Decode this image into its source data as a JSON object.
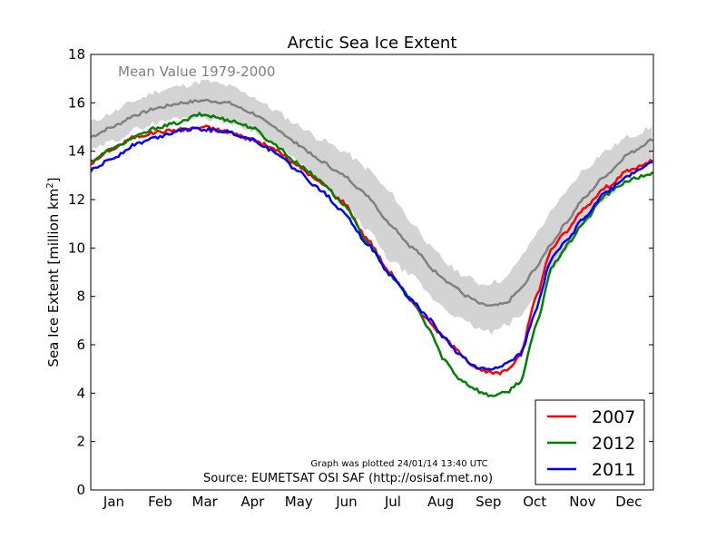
{
  "chart_data": {
    "type": "line",
    "title": "Arctic Sea Ice Extent",
    "ylabel": "Sea Ice Extent [million km",
    "ylabel_sup": "2",
    "ylabel_end": "]",
    "xlim": [
      1,
      366
    ],
    "ylim": [
      0,
      18
    ],
    "yticks": [
      0,
      2,
      4,
      6,
      8,
      10,
      12,
      14,
      16,
      18
    ],
    "months": [
      {
        "label": "Jan",
        "day": 16
      },
      {
        "label": "Feb",
        "day": 46
      },
      {
        "label": "Mar",
        "day": 75
      },
      {
        "label": "Apr",
        "day": 106
      },
      {
        "label": "May",
        "day": 136
      },
      {
        "label": "Jun",
        "day": 167
      },
      {
        "label": "Jul",
        "day": 197
      },
      {
        "label": "Aug",
        "day": 228
      },
      {
        "label": "Sep",
        "day": 259
      },
      {
        "label": "Oct",
        "day": 289
      },
      {
        "label": "Nov",
        "day": 320
      },
      {
        "label": "Dec",
        "day": 350
      }
    ],
    "mean_label": "Mean Value 1979-2000",
    "mean_color": "#808080",
    "band_color": "#d3d3d3",
    "mean_series": {
      "x": [
        1,
        15,
        30,
        45,
        60,
        75,
        90,
        105,
        120,
        135,
        150,
        165,
        180,
        195,
        210,
        225,
        235,
        245,
        255,
        262,
        270,
        280,
        290,
        300,
        310,
        320,
        335,
        350,
        366
      ],
      "y": [
        14.6,
        15.0,
        15.5,
        15.8,
        16.0,
        16.1,
        16.0,
        15.6,
        15.0,
        14.3,
        13.6,
        13.0,
        12.2,
        11.0,
        10.0,
        9.0,
        8.5,
        8.0,
        7.65,
        7.6,
        7.7,
        8.3,
        9.2,
        10.2,
        11.1,
        12.0,
        13.0,
        13.9,
        14.5
      ]
    },
    "band_upper": [
      15.2,
      15.6,
      16.1,
      16.5,
      16.7,
      16.9,
      16.7,
      16.3,
      15.7,
      15.1,
      14.5,
      14.0,
      13.3,
      12.3,
      11.0,
      9.8,
      9.2,
      8.8,
      8.5,
      8.6,
      8.7,
      9.6,
      10.6,
      11.5,
      12.4,
      13.2,
      14.0,
      14.6,
      15.0
    ],
    "band_lower": [
      14.0,
      14.4,
      14.9,
      15.2,
      15.4,
      15.4,
      15.2,
      14.9,
      14.3,
      13.6,
      12.7,
      11.8,
      10.8,
      9.5,
      8.8,
      7.8,
      7.3,
      6.9,
      6.6,
      6.5,
      6.8,
      7.2,
      8.0,
      9.0,
      10.0,
      11.0,
      12.0,
      13.0,
      13.6
    ],
    "series": [
      {
        "name": "2007",
        "color": "#ff0000",
        "x": [
          1,
          15,
          30,
          45,
          60,
          75,
          90,
          105,
          120,
          135,
          150,
          165,
          180,
          195,
          210,
          220,
          230,
          240,
          250,
          255,
          260,
          265,
          270,
          275,
          280,
          290,
          300,
          310,
          320,
          335,
          350,
          366
        ],
        "y": [
          13.5,
          14.1,
          14.6,
          14.8,
          14.9,
          15.0,
          14.8,
          14.5,
          14.1,
          13.4,
          12.7,
          11.9,
          10.4,
          9.0,
          7.7,
          7.0,
          6.3,
          5.7,
          5.1,
          4.9,
          4.85,
          4.8,
          4.9,
          5.2,
          5.7,
          8.0,
          10.0,
          10.7,
          11.6,
          12.5,
          13.2,
          13.6
        ]
      },
      {
        "name": "2012",
        "color": "#008000",
        "x": [
          1,
          15,
          30,
          45,
          60,
          70,
          75,
          90,
          105,
          120,
          135,
          150,
          165,
          180,
          195,
          210,
          220,
          230,
          240,
          250,
          255,
          260,
          270,
          280,
          290,
          300,
          310,
          320,
          335,
          350,
          366
        ],
        "y": [
          13.6,
          14.1,
          14.6,
          15.0,
          15.2,
          15.5,
          15.5,
          15.3,
          15.0,
          14.3,
          13.5,
          12.8,
          11.8,
          10.3,
          8.9,
          7.8,
          6.7,
          5.4,
          4.6,
          4.2,
          4.0,
          3.9,
          4.0,
          4.5,
          6.8,
          9.2,
          10.1,
          11.0,
          12.2,
          12.8,
          13.1
        ]
      },
      {
        "name": "2011",
        "color": "#0000ff",
        "x": [
          1,
          15,
          30,
          45,
          60,
          75,
          90,
          105,
          120,
          135,
          150,
          165,
          180,
          195,
          210,
          220,
          230,
          240,
          250,
          255,
          260,
          270,
          280,
          290,
          300,
          310,
          320,
          335,
          350,
          366
        ],
        "y": [
          13.2,
          13.7,
          14.3,
          14.6,
          14.9,
          14.9,
          14.8,
          14.5,
          14.0,
          13.2,
          12.4,
          11.5,
          10.2,
          8.9,
          7.8,
          7.1,
          6.3,
          5.6,
          5.1,
          5.0,
          5.0,
          5.2,
          5.6,
          7.5,
          9.6,
          10.3,
          11.2,
          12.3,
          13.0,
          13.6
        ]
      }
    ],
    "legend_position": "lower-right",
    "annotations": {
      "plotted": "Graph was plotted 24/01/14 13:40 UTC",
      "source": "Source: EUMETSAT OSI SAF (http://osisaf.met.no)"
    }
  }
}
